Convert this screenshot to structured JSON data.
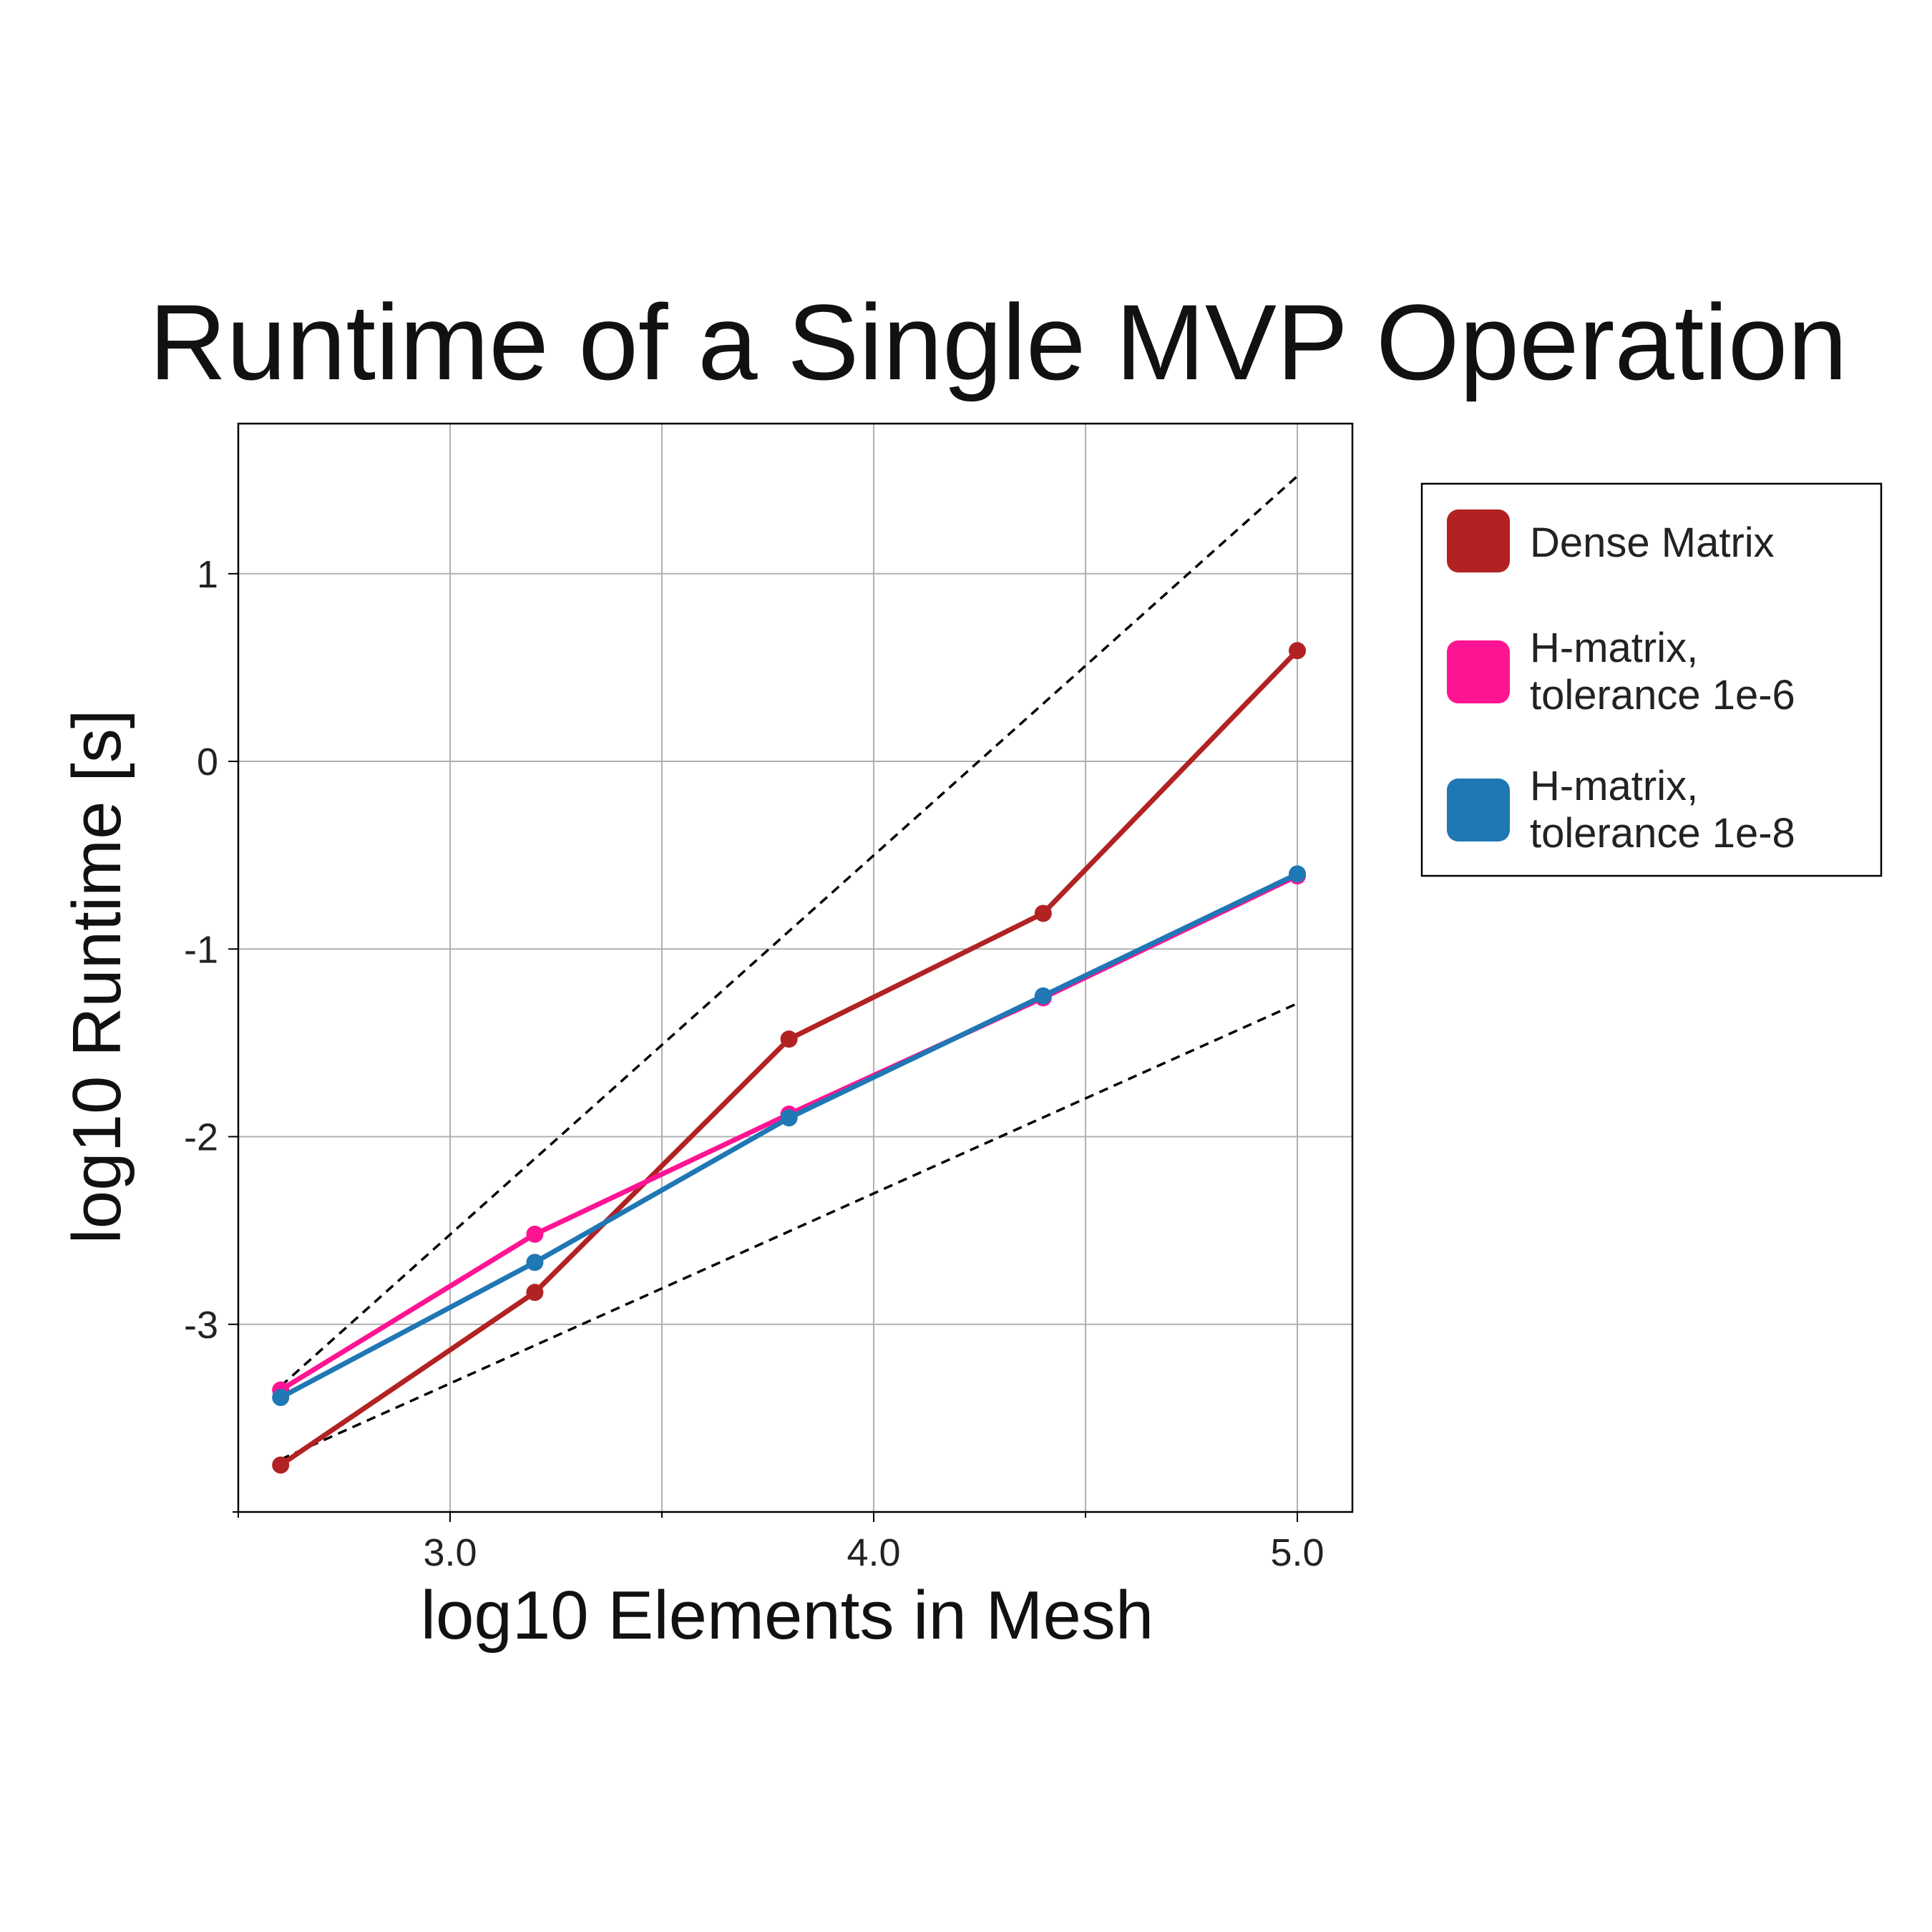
{
  "chart_data": {
    "type": "line",
    "title": "Runtime of a Single MVP Operation",
    "xlabel": "log10 Elements in Mesh",
    "ylabel": "log10 Runtime [s]",
    "xlim": [
      2.5,
      5.13
    ],
    "ylim": [
      -4.0,
      1.8
    ],
    "x_ticks": [
      3.0,
      4.0,
      5.0
    ],
    "x_tick_labels": [
      "3.0",
      "4.0",
      "5.0"
    ],
    "x_minor_ticks": [
      2.5,
      3.5,
      4.5
    ],
    "y_ticks": [
      1,
      0,
      -1,
      -2,
      -3
    ],
    "y_tick_labels": [
      "1",
      "0",
      "-1",
      "-2",
      "-3"
    ],
    "y_minor_ticks": [
      -4
    ],
    "grid": true,
    "legend_position": "right, outside plot area",
    "x": [
      2.6,
      3.2,
      3.8,
      4.4,
      5.0
    ],
    "series": [
      {
        "name": "Dense Matrix",
        "color": "#b22222",
        "values": [
          -3.75,
          -2.83,
          -1.48,
          -0.81,
          0.59
        ]
      },
      {
        "name": "H-matrix, tolerance 1e-6",
        "legend_lines": [
          "H-matrix,",
          "tolerance 1e-6"
        ],
        "color": "#ff1493",
        "values": [
          -3.35,
          -2.52,
          -1.88,
          -1.26,
          -0.61
        ]
      },
      {
        "name": "H-matrix, tolerance 1e-8",
        "legend_lines": [
          "H-matrix,",
          "tolerance 1e-8"
        ],
        "color": "#1f77b4",
        "values": [
          -3.39,
          -2.67,
          -1.9,
          -1.25,
          -0.6
        ]
      }
    ],
    "reference_lines": [
      {
        "style": "dashed",
        "color": "#000000",
        "x": [
          2.6,
          5.0
        ],
        "y": [
          -3.33,
          1.52
        ]
      },
      {
        "style": "dashed",
        "color": "#000000",
        "x": [
          2.6,
          5.0
        ],
        "y": [
          -3.72,
          -1.29
        ]
      }
    ]
  }
}
